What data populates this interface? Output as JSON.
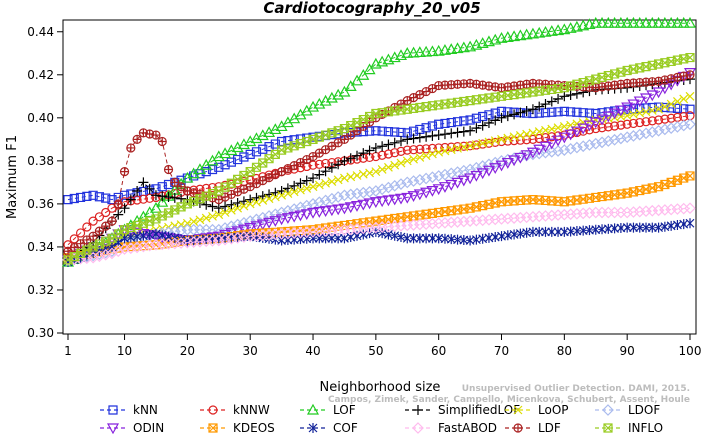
{
  "credit": {
    "line1": "Unsupervised Outlier Detection. DAMI, 2015.",
    "line2": "Campos, Zimek, Sander, Campello, Micenkova, Schubert, Assent, Houle"
  },
  "chart_data": {
    "type": "line",
    "title": "Cardiotocography_20_v05",
    "xlabel": "Neighborhood size",
    "ylabel": "Maximum F1",
    "xlim": [
      1,
      100
    ],
    "ylim": [
      0.3,
      0.445
    ],
    "xticks": [
      1,
      10,
      20,
      30,
      40,
      50,
      60,
      70,
      80,
      90,
      100
    ],
    "yticks": [
      0.3,
      0.32,
      0.34,
      0.36,
      0.38,
      0.4,
      0.42,
      0.44
    ],
    "ytick_labels": [
      "0.30",
      "0.32",
      "0.34",
      "0.36",
      "0.38",
      "0.40",
      "0.42",
      "0.44"
    ],
    "grid": false,
    "legend_position": "bottom",
    "series": [
      {
        "name": "kNN",
        "color": "#2233dd",
        "marker": "square",
        "dash": "4,3",
        "points": [
          [
            1,
            0.362
          ],
          [
            5,
            0.364
          ],
          [
            8,
            0.362
          ],
          [
            10,
            0.364
          ],
          [
            15,
            0.367
          ],
          [
            20,
            0.372
          ],
          [
            25,
            0.377
          ],
          [
            30,
            0.383
          ],
          [
            35,
            0.389
          ],
          [
            40,
            0.391
          ],
          [
            45,
            0.393
          ],
          [
            50,
            0.394
          ],
          [
            55,
            0.393
          ],
          [
            60,
            0.397
          ],
          [
            65,
            0.399
          ],
          [
            70,
            0.403
          ],
          [
            75,
            0.402
          ],
          [
            80,
            0.403
          ],
          [
            85,
            0.402
          ],
          [
            90,
            0.404
          ],
          [
            95,
            0.405
          ],
          [
            100,
            0.404
          ]
        ]
      },
      {
        "name": "kNNW",
        "color": "#dd2222",
        "marker": "circle",
        "dash": "4,3",
        "points": [
          [
            1,
            0.341
          ],
          [
            5,
            0.352
          ],
          [
            8,
            0.358
          ],
          [
            10,
            0.361
          ],
          [
            15,
            0.363
          ],
          [
            20,
            0.366
          ],
          [
            25,
            0.368
          ],
          [
            30,
            0.371
          ],
          [
            35,
            0.375
          ],
          [
            40,
            0.378
          ],
          [
            45,
            0.38
          ],
          [
            50,
            0.382
          ],
          [
            55,
            0.385
          ],
          [
            60,
            0.386
          ],
          [
            65,
            0.387
          ],
          [
            70,
            0.389
          ],
          [
            75,
            0.39
          ],
          [
            80,
            0.392
          ],
          [
            85,
            0.395
          ],
          [
            90,
            0.397
          ],
          [
            95,
            0.399
          ],
          [
            100,
            0.401
          ]
        ]
      },
      {
        "name": "LOF",
        "color": "#22cc22",
        "marker": "triangle",
        "dash": "4,3",
        "points": [
          [
            1,
            0.333
          ],
          [
            5,
            0.338
          ],
          [
            8,
            0.344
          ],
          [
            10,
            0.348
          ],
          [
            12,
            0.352
          ],
          [
            15,
            0.358
          ],
          [
            20,
            0.372
          ],
          [
            25,
            0.382
          ],
          [
            30,
            0.389
          ],
          [
            35,
            0.396
          ],
          [
            40,
            0.405
          ],
          [
            45,
            0.412
          ],
          [
            50,
            0.425
          ],
          [
            55,
            0.43
          ],
          [
            60,
            0.431
          ],
          [
            65,
            0.433
          ],
          [
            70,
            0.437
          ],
          [
            75,
            0.439
          ],
          [
            80,
            0.441
          ],
          [
            85,
            0.444
          ],
          [
            90,
            0.444
          ],
          [
            95,
            0.444
          ],
          [
            100,
            0.444
          ]
        ]
      },
      {
        "name": "SimplifiedLOF",
        "color": "#000000",
        "marker": "plus",
        "dash": "4,3",
        "points": [
          [
            1,
            0.334
          ],
          [
            5,
            0.342
          ],
          [
            8,
            0.352
          ],
          [
            10,
            0.358
          ],
          [
            13,
            0.37
          ],
          [
            15,
            0.364
          ],
          [
            20,
            0.362
          ],
          [
            25,
            0.358
          ],
          [
            30,
            0.362
          ],
          [
            35,
            0.366
          ],
          [
            40,
            0.372
          ],
          [
            45,
            0.38
          ],
          [
            50,
            0.386
          ],
          [
            55,
            0.39
          ],
          [
            60,
            0.392
          ],
          [
            65,
            0.394
          ],
          [
            70,
            0.4
          ],
          [
            75,
            0.404
          ],
          [
            80,
            0.41
          ],
          [
            85,
            0.413
          ],
          [
            90,
            0.414
          ],
          [
            95,
            0.416
          ],
          [
            100,
            0.418
          ]
        ]
      },
      {
        "name": "LoOP",
        "color": "#dddd00",
        "marker": "x",
        "dash": "4,3",
        "points": [
          [
            1,
            0.334
          ],
          [
            5,
            0.336
          ],
          [
            8,
            0.342
          ],
          [
            10,
            0.345
          ],
          [
            15,
            0.348
          ],
          [
            20,
            0.351
          ],
          [
            25,
            0.355
          ],
          [
            30,
            0.36
          ],
          [
            35,
            0.364
          ],
          [
            40,
            0.368
          ],
          [
            45,
            0.372
          ],
          [
            50,
            0.375
          ],
          [
            55,
            0.38
          ],
          [
            60,
            0.384
          ],
          [
            65,
            0.387
          ],
          [
            70,
            0.39
          ],
          [
            75,
            0.393
          ],
          [
            80,
            0.396
          ],
          [
            85,
            0.399
          ],
          [
            90,
            0.401
          ],
          [
            95,
            0.404
          ],
          [
            100,
            0.41
          ]
        ]
      },
      {
        "name": "LDOF",
        "color": "#aabbee",
        "marker": "diamond",
        "dash": "4,3",
        "points": [
          [
            1,
            0.334
          ],
          [
            5,
            0.336
          ],
          [
            8,
            0.338
          ],
          [
            10,
            0.342
          ],
          [
            15,
            0.346
          ],
          [
            20,
            0.348
          ],
          [
            25,
            0.348
          ],
          [
            30,
            0.352
          ],
          [
            35,
            0.356
          ],
          [
            40,
            0.36
          ],
          [
            45,
            0.364
          ],
          [
            50,
            0.366
          ],
          [
            55,
            0.37
          ],
          [
            60,
            0.373
          ],
          [
            65,
            0.376
          ],
          [
            70,
            0.38
          ],
          [
            75,
            0.383
          ],
          [
            80,
            0.385
          ],
          [
            85,
            0.388
          ],
          [
            90,
            0.391
          ],
          [
            95,
            0.394
          ],
          [
            100,
            0.397
          ]
        ]
      },
      {
        "name": "ODIN",
        "color": "#8822dd",
        "marker": "triangle-down",
        "dash": "4,3",
        "points": [
          [
            1,
            0.334
          ],
          [
            5,
            0.34
          ],
          [
            8,
            0.344
          ],
          [
            10,
            0.348
          ],
          [
            15,
            0.345
          ],
          [
            20,
            0.343
          ],
          [
            25,
            0.345
          ],
          [
            30,
            0.349
          ],
          [
            35,
            0.353
          ],
          [
            40,
            0.356
          ],
          [
            45,
            0.358
          ],
          [
            50,
            0.361
          ],
          [
            55,
            0.363
          ],
          [
            60,
            0.367
          ],
          [
            65,
            0.372
          ],
          [
            70,
            0.378
          ],
          [
            75,
            0.384
          ],
          [
            80,
            0.391
          ],
          [
            85,
            0.398
          ],
          [
            90,
            0.405
          ],
          [
            95,
            0.412
          ],
          [
            100,
            0.421
          ]
        ]
      },
      {
        "name": "KDEOS",
        "color": "#ff9900",
        "marker": "square-x",
        "dash": "4,3",
        "points": [
          [
            1,
            0.335
          ],
          [
            5,
            0.337
          ],
          [
            8,
            0.339
          ],
          [
            10,
            0.34
          ],
          [
            15,
            0.341
          ],
          [
            20,
            0.343
          ],
          [
            25,
            0.344
          ],
          [
            30,
            0.346
          ],
          [
            35,
            0.347
          ],
          [
            40,
            0.348
          ],
          [
            45,
            0.35
          ],
          [
            50,
            0.352
          ],
          [
            55,
            0.354
          ],
          [
            60,
            0.356
          ],
          [
            65,
            0.358
          ],
          [
            70,
            0.361
          ],
          [
            75,
            0.362
          ],
          [
            80,
            0.361
          ],
          [
            85,
            0.363
          ],
          [
            90,
            0.365
          ],
          [
            95,
            0.368
          ],
          [
            100,
            0.373
          ]
        ]
      },
      {
        "name": "COF",
        "color": "#112299",
        "marker": "asterisk",
        "dash": "4,3",
        "points": [
          [
            1,
            0.333
          ],
          [
            5,
            0.337
          ],
          [
            8,
            0.34
          ],
          [
            10,
            0.344
          ],
          [
            15,
            0.346
          ],
          [
            20,
            0.343
          ],
          [
            25,
            0.344
          ],
          [
            30,
            0.345
          ],
          [
            35,
            0.343
          ],
          [
            40,
            0.344
          ],
          [
            45,
            0.344
          ],
          [
            50,
            0.347
          ],
          [
            55,
            0.344
          ],
          [
            60,
            0.344
          ],
          [
            65,
            0.343
          ],
          [
            70,
            0.345
          ],
          [
            75,
            0.347
          ],
          [
            80,
            0.347
          ],
          [
            85,
            0.348
          ],
          [
            90,
            0.349
          ],
          [
            95,
            0.349
          ],
          [
            100,
            0.351
          ]
        ]
      },
      {
        "name": "FastABOD",
        "color": "#ffbbee",
        "marker": "diamond",
        "dash": "4,3",
        "points": [
          [
            1,
            0.334
          ],
          [
            5,
            0.335
          ],
          [
            8,
            0.337
          ],
          [
            10,
            0.339
          ],
          [
            15,
            0.341
          ],
          [
            20,
            0.342
          ],
          [
            25,
            0.343
          ],
          [
            30,
            0.345
          ],
          [
            35,
            0.346
          ],
          [
            40,
            0.347
          ],
          [
            45,
            0.348
          ],
          [
            50,
            0.349
          ],
          [
            55,
            0.35
          ],
          [
            60,
            0.351
          ],
          [
            65,
            0.352
          ],
          [
            70,
            0.353
          ],
          [
            75,
            0.354
          ],
          [
            80,
            0.355
          ],
          [
            85,
            0.356
          ],
          [
            90,
            0.356
          ],
          [
            95,
            0.357
          ],
          [
            100,
            0.358
          ]
        ]
      },
      {
        "name": "LDF",
        "color": "#aa2222",
        "marker": "circle-plus",
        "dash": "4,3",
        "points": [
          [
            1,
            0.338
          ],
          [
            5,
            0.345
          ],
          [
            8,
            0.352
          ],
          [
            9,
            0.36
          ],
          [
            10,
            0.375
          ],
          [
            11,
            0.386
          ],
          [
            12,
            0.39
          ],
          [
            13,
            0.393
          ],
          [
            15,
            0.392
          ],
          [
            16,
            0.389
          ],
          [
            17,
            0.376
          ],
          [
            18,
            0.37
          ],
          [
            20,
            0.366
          ],
          [
            25,
            0.362
          ],
          [
            30,
            0.368
          ],
          [
            35,
            0.375
          ],
          [
            40,
            0.382
          ],
          [
            45,
            0.39
          ],
          [
            50,
            0.4
          ],
          [
            55,
            0.408
          ],
          [
            60,
            0.415
          ],
          [
            65,
            0.416
          ],
          [
            70,
            0.414
          ],
          [
            75,
            0.416
          ],
          [
            80,
            0.415
          ],
          [
            85,
            0.414
          ],
          [
            90,
            0.416
          ],
          [
            95,
            0.417
          ],
          [
            100,
            0.42
          ]
        ]
      },
      {
        "name": "INFLO",
        "color": "#99cc22",
        "marker": "square-x",
        "dash": "4,3",
        "points": [
          [
            1,
            0.334
          ],
          [
            5,
            0.34
          ],
          [
            8,
            0.344
          ],
          [
            10,
            0.348
          ],
          [
            15,
            0.353
          ],
          [
            20,
            0.36
          ],
          [
            25,
            0.366
          ],
          [
            30,
            0.375
          ],
          [
            35,
            0.385
          ],
          [
            40,
            0.39
          ],
          [
            45,
            0.395
          ],
          [
            50,
            0.402
          ],
          [
            55,
            0.404
          ],
          [
            60,
            0.406
          ],
          [
            65,
            0.408
          ],
          [
            70,
            0.41
          ],
          [
            75,
            0.412
          ],
          [
            80,
            0.414
          ],
          [
            85,
            0.418
          ],
          [
            90,
            0.422
          ],
          [
            95,
            0.425
          ],
          [
            100,
            0.428
          ]
        ]
      }
    ]
  }
}
